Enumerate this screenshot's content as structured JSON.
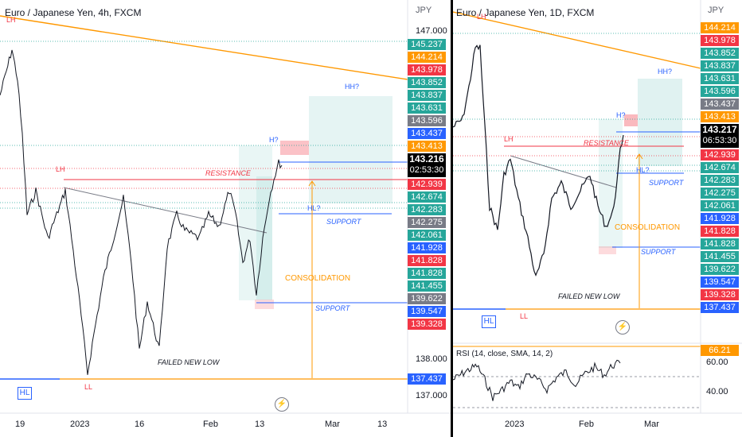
{
  "left": {
    "title": "Euro / Japanese Yen, 4h, FXCM",
    "currency": "JPY",
    "axis_ticks": [
      "147.000",
      "138.000",
      "137.000"
    ],
    "x_labels": [
      "19",
      "2023",
      "16",
      "Feb",
      "13",
      "Mar",
      "13"
    ],
    "price_tags": [
      {
        "v": "145.237",
        "c": "#26a69a"
      },
      {
        "v": "144.214",
        "c": "#ff9800"
      },
      {
        "v": "143.978",
        "c": "#f23645"
      },
      {
        "v": "143.852",
        "c": "#26a69a"
      },
      {
        "v": "143.837",
        "c": "#26a69a"
      },
      {
        "v": "143.631",
        "c": "#26a69a"
      },
      {
        "v": "143.596",
        "c": "#787b86"
      },
      {
        "v": "143.437",
        "c": "#2962ff"
      },
      {
        "v": "143.413",
        "c": "#ff9800"
      },
      {
        "v": "142.939",
        "c": "#f23645"
      },
      {
        "v": "142.674",
        "c": "#26a69a"
      },
      {
        "v": "142.283",
        "c": "#26a69a"
      },
      {
        "v": "142.275",
        "c": "#787b86"
      },
      {
        "v": "142.061",
        "c": "#26a69a"
      },
      {
        "v": "141.928",
        "c": "#2962ff"
      },
      {
        "v": "141.828",
        "c": "#f23645"
      },
      {
        "v": "141.828",
        "c": "#26a69a"
      },
      {
        "v": "141.455",
        "c": "#26a69a"
      },
      {
        "v": "139.622",
        "c": "#787b86"
      },
      {
        "v": "139.547",
        "c": "#2962ff"
      },
      {
        "v": "139.328",
        "c": "#f23645"
      }
    ],
    "current_price": "143.216",
    "countdown": "02:53:30",
    "bottom_tag": "137.437",
    "annotations": {
      "lh_top": "LH",
      "lh": "LH",
      "resistance": "RESISTANCE",
      "hh": "HH?",
      "h": "H?",
      "hl": "HL?",
      "support_upper": "SUPPORT",
      "support_lower": "SUPPORT",
      "consolidation": "CONSOLIDATION",
      "failed": "FAILED NEW LOW",
      "ll": "LL",
      "hl_badge": "HL"
    }
  },
  "right": {
    "title": "Euro / Japanese Yen, 1D, FXCM",
    "currency": "JPY",
    "x_labels": [
      "2023",
      "Feb",
      "Mar"
    ],
    "price_tags": [
      {
        "v": "144.214",
        "c": "#ff9800"
      },
      {
        "v": "143.978",
        "c": "#f23645"
      },
      {
        "v": "143.852",
        "c": "#26a69a"
      },
      {
        "v": "143.837",
        "c": "#26a69a"
      },
      {
        "v": "143.631",
        "c": "#26a69a"
      },
      {
        "v": "143.596",
        "c": "#26a69a"
      },
      {
        "v": "143.437",
        "c": "#787b86"
      },
      {
        "v": "143.413",
        "c": "#ff9800"
      },
      {
        "v": "142.939",
        "c": "#f23645"
      },
      {
        "v": "142.674",
        "c": "#26a69a"
      },
      {
        "v": "142.283",
        "c": "#26a69a"
      },
      {
        "v": "142.275",
        "c": "#26a69a"
      },
      {
        "v": "142.061",
        "c": "#26a69a"
      },
      {
        "v": "141.928",
        "c": "#2962ff"
      },
      {
        "v": "141.828",
        "c": "#f23645"
      },
      {
        "v": "141.828",
        "c": "#26a69a"
      },
      {
        "v": "141.455",
        "c": "#26a69a"
      },
      {
        "v": "139.622",
        "c": "#26a69a"
      },
      {
        "v": "139.547",
        "c": "#2962ff"
      },
      {
        "v": "139.328",
        "c": "#f23645"
      },
      {
        "v": "137.437",
        "c": "#2962ff"
      }
    ],
    "current_price": "143.217",
    "countdown": "06:53:30",
    "rsi_label": "RSI (14, close, SMA, 14, 2)",
    "rsi_value": "66.21",
    "rsi_ticks": [
      "60.00",
      "40.00"
    ],
    "annotations": {
      "lh_top": "LH",
      "lh": "LH",
      "resistance": "RESISTANCE",
      "hh": "HH?",
      "h": "H?",
      "hl": "HL?",
      "support_upper": "SUPPORT",
      "support_lower": "SUPPORT",
      "consolidation": "CONSOLIDATION",
      "failed": "FAILED NEW LOW",
      "ll": "LL",
      "hl_badge": "HL"
    }
  }
}
